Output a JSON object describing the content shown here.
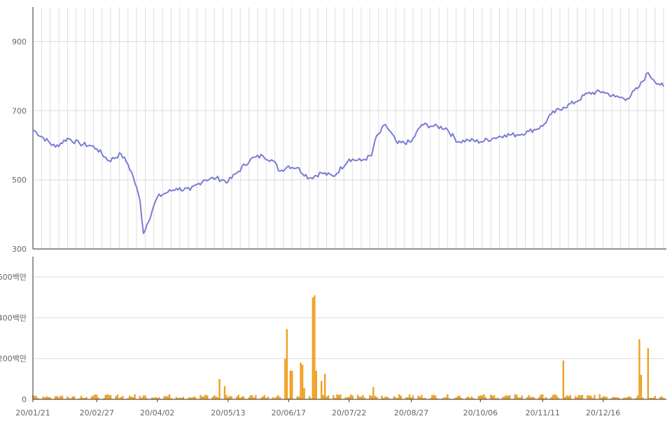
{
  "chart_data": [
    {
      "type": "line",
      "title": "",
      "xlabel": "",
      "ylabel": "",
      "ylim": [
        300,
        1000
      ],
      "y_ticks": [
        "300",
        "500",
        "700",
        "900"
      ],
      "grid": "on",
      "color": "#7b7bd6",
      "x_ticks": [
        "20/01/21",
        "20/02/27",
        "20/04/02",
        "20/05/13",
        "20/06/17",
        "20/07/22",
        "20/08/27",
        "20/10/06",
        "20/11/11",
        "20/12/16"
      ],
      "x_range": [
        "2020-01-21",
        "2021-01-20"
      ],
      "series": [
        {
          "x": [
            "2020-01-21",
            "2020-02-03",
            "2020-02-10",
            "2020-02-17",
            "2020-02-24",
            "2020-02-27",
            "2020-03-05",
            "2020-03-12",
            "2020-03-16",
            "2020-03-19",
            "2020-03-23",
            "2020-03-25",
            "2020-04-02",
            "2020-04-06",
            "2020-04-13",
            "2020-04-21",
            "2020-04-29",
            "2020-05-06",
            "2020-05-13",
            "2020-05-18",
            "2020-05-26",
            "2020-06-02",
            "2020-06-08",
            "2020-06-12",
            "2020-06-17",
            "2020-06-22",
            "2020-06-29",
            "2020-07-06",
            "2020-07-13",
            "2020-07-22",
            "2020-07-29",
            "2020-08-04",
            "2020-08-06",
            "2020-08-12",
            "2020-08-19",
            "2020-08-27",
            "2020-09-02",
            "2020-09-09",
            "2020-09-16",
            "2020-09-23",
            "2020-09-29",
            "2020-10-06",
            "2020-10-13",
            "2020-10-20",
            "2020-10-27",
            "2020-11-03",
            "2020-11-11",
            "2020-11-16",
            "2020-11-23",
            "2020-11-30",
            "2020-12-07",
            "2020-12-16",
            "2020-12-23",
            "2020-12-30",
            "2021-01-06",
            "2021-01-11",
            "2021-01-14",
            "2021-01-20"
          ],
          "y": [
            645,
            595,
            620,
            605,
            598,
            590,
            555,
            575,
            545,
            510,
            440,
            345,
            450,
            460,
            475,
            470,
            500,
            505,
            495,
            520,
            560,
            570,
            555,
            525,
            540,
            535,
            505,
            520,
            510,
            560,
            555,
            570,
            615,
            660,
            605,
            610,
            660,
            655,
            650,
            610,
            615,
            610,
            620,
            630,
            630,
            640,
            655,
            690,
            710,
            725,
            750,
            755,
            740,
            735,
            770,
            810,
            790,
            770
          ]
        }
      ]
    },
    {
      "type": "bar",
      "title": "",
      "xlabel": "",
      "ylabel": "",
      "ylim": [
        0,
        700
      ],
      "y_ticks": [
        "0",
        "200백만",
        "400백만",
        "600백만"
      ],
      "grid": "on",
      "color": "#f0a020",
      "x_ticks": [
        "20/01/21",
        "20/02/27",
        "20/04/02",
        "20/05/13",
        "20/06/17",
        "20/07/22",
        "20/08/27",
        "20/10/06",
        "20/11/11",
        "20/12/16"
      ],
      "unit": "백만",
      "spikes": [
        {
          "x": "2020-05-08",
          "v": 100
        },
        {
          "x": "2020-05-11",
          "v": 65
        },
        {
          "x": "2020-06-15",
          "v": 200
        },
        {
          "x": "2020-06-16",
          "v": 345
        },
        {
          "x": "2020-06-18",
          "v": 140
        },
        {
          "x": "2020-06-19",
          "v": 140
        },
        {
          "x": "2020-06-24",
          "v": 180
        },
        {
          "x": "2020-06-25",
          "v": 170
        },
        {
          "x": "2020-06-26",
          "v": 55
        },
        {
          "x": "2020-07-01",
          "v": 500
        },
        {
          "x": "2020-07-02",
          "v": 510
        },
        {
          "x": "2020-07-03",
          "v": 140
        },
        {
          "x": "2020-07-06",
          "v": 90
        },
        {
          "x": "2020-07-08",
          "v": 125
        },
        {
          "x": "2020-08-05",
          "v": 60
        },
        {
          "x": "2020-11-23",
          "v": 190
        },
        {
          "x": "2021-01-06",
          "v": 295
        },
        {
          "x": "2021-01-07",
          "v": 120
        },
        {
          "x": "2021-01-11",
          "v": 250
        }
      ],
      "baseline_range": [
        5,
        25
      ]
    }
  ]
}
